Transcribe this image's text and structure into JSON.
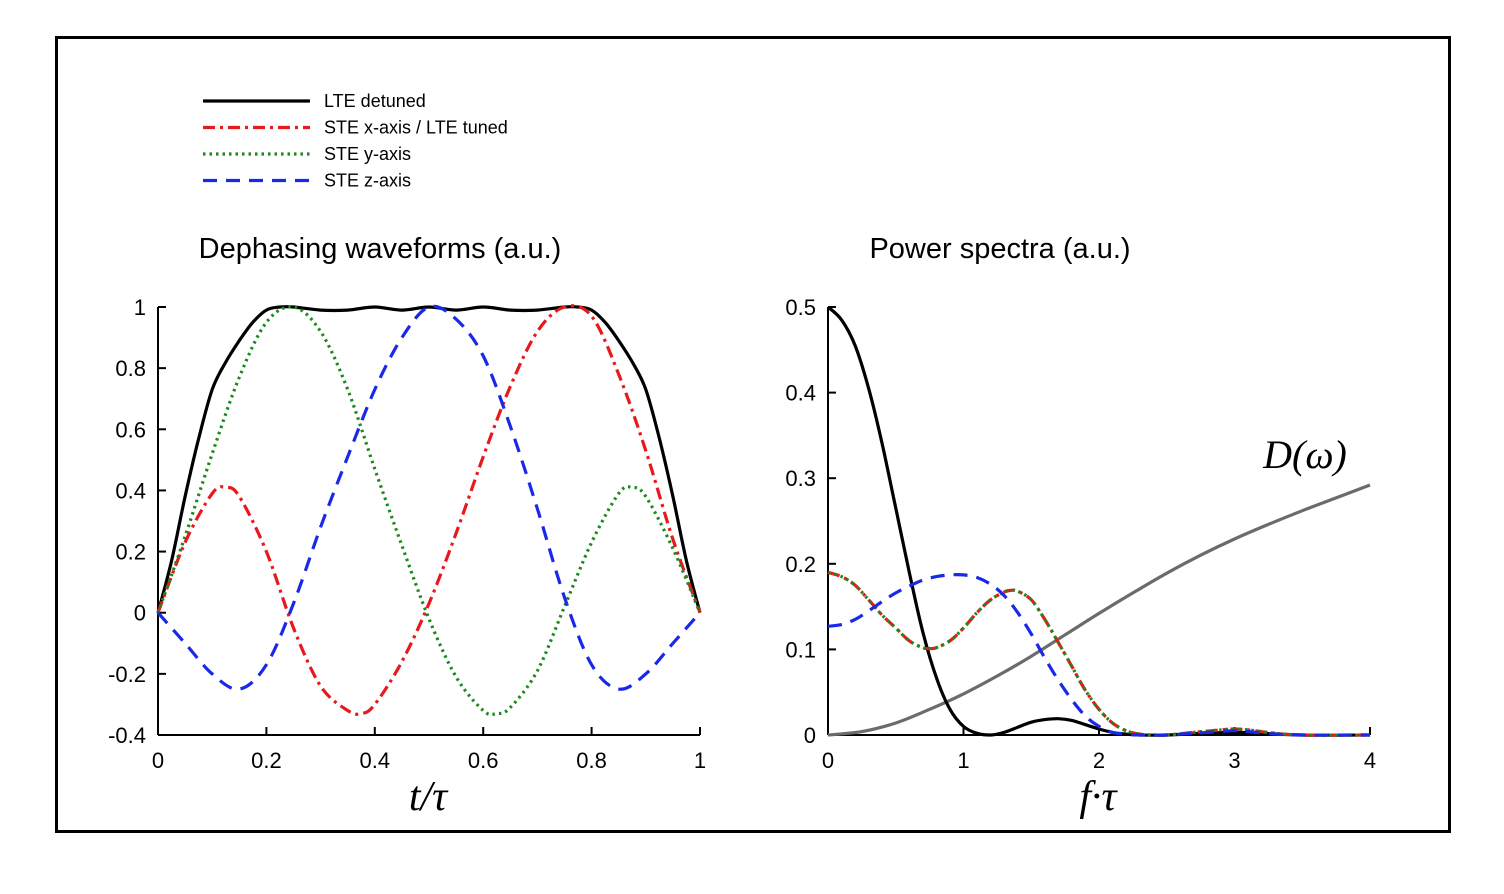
{
  "legend": [
    {
      "label": "LTE detuned",
      "color": "#000000",
      "dash": "solid"
    },
    {
      "label": "STE x-axis / LTE tuned",
      "color": "#e8191c",
      "dash": "dashdot"
    },
    {
      "label": "STE y-axis",
      "color": "#1a8a1a",
      "dash": "dotted"
    },
    {
      "label": "STE z-axis",
      "color": "#1a28e8",
      "dash": "dashed"
    }
  ],
  "chart_data": [
    {
      "type": "line",
      "title": "Dephasing waveforms (a.u.)",
      "xlabel": "t/τ",
      "ylabel": "",
      "xlim": [
        0,
        1
      ],
      "ylim": [
        -0.4,
        1
      ],
      "xticks": [
        "0",
        "0.2",
        "0.4",
        "0.6",
        "0.8",
        "1"
      ],
      "yticks": [
        "-0.4",
        "-0.2",
        "0",
        "0.2",
        "0.4",
        "0.6",
        "0.8",
        "1"
      ],
      "series": [
        {
          "name": "LTE detuned",
          "color": "#000000",
          "dash": "solid",
          "x": [
            0,
            0.025,
            0.05,
            0.075,
            0.1,
            0.125,
            0.15,
            0.175,
            0.2,
            0.225,
            0.25,
            0.3,
            0.35,
            0.4,
            0.45,
            0.5,
            0.55,
            0.6,
            0.65,
            0.7,
            0.75,
            0.775,
            0.8,
            0.825,
            0.85,
            0.875,
            0.9,
            0.925,
            0.95,
            0.975,
            1
          ],
          "y": [
            0,
            0.17,
            0.38,
            0.57,
            0.73,
            0.82,
            0.89,
            0.95,
            0.99,
            1.0,
            1.0,
            0.99,
            0.99,
            1.0,
            0.99,
            1.0,
            0.99,
            1.0,
            0.99,
            0.99,
            1.0,
            1.0,
            0.99,
            0.95,
            0.89,
            0.82,
            0.73,
            0.57,
            0.38,
            0.17,
            0
          ]
        },
        {
          "name": "STE x-axis / LTE tuned",
          "color": "#e8191c",
          "dash": "dashdot",
          "x": [
            0,
            0.05,
            0.1,
            0.125,
            0.15,
            0.2,
            0.25,
            0.3,
            0.35,
            0.375,
            0.4,
            0.45,
            0.5,
            0.55,
            0.6,
            0.65,
            0.7,
            0.75,
            0.8,
            0.85,
            0.9,
            0.95,
            1
          ],
          "y": [
            0,
            0.23,
            0.39,
            0.41,
            0.38,
            0.2,
            -0.05,
            -0.24,
            -0.32,
            -0.33,
            -0.3,
            -0.16,
            0.03,
            0.26,
            0.51,
            0.74,
            0.92,
            1.0,
            0.97,
            0.78,
            0.53,
            0.24,
            0
          ]
        },
        {
          "name": "STE y-axis",
          "color": "#1a8a1a",
          "dash": "dotted",
          "x": [
            0,
            0.05,
            0.1,
            0.15,
            0.2,
            0.25,
            0.3,
            0.35,
            0.4,
            0.45,
            0.5,
            0.55,
            0.6,
            0.625,
            0.65,
            0.7,
            0.75,
            0.8,
            0.85,
            0.875,
            0.9,
            0.95,
            1
          ],
          "y": [
            0,
            0.25,
            0.52,
            0.77,
            0.95,
            1.0,
            0.92,
            0.73,
            0.47,
            0.22,
            -0.02,
            -0.21,
            -0.32,
            -0.33,
            -0.31,
            -0.19,
            0.02,
            0.23,
            0.39,
            0.41,
            0.38,
            0.21,
            0
          ]
        },
        {
          "name": "STE z-axis",
          "color": "#1a28e8",
          "dash": "dashed",
          "x": [
            0,
            0.05,
            0.1,
            0.15,
            0.2,
            0.25,
            0.3,
            0.35,
            0.4,
            0.45,
            0.5,
            0.55,
            0.6,
            0.65,
            0.7,
            0.75,
            0.8,
            0.85,
            0.9,
            0.95,
            1
          ],
          "y": [
            0,
            -0.1,
            -0.2,
            -0.25,
            -0.17,
            0.03,
            0.28,
            0.51,
            0.73,
            0.9,
            1.0,
            0.96,
            0.84,
            0.61,
            0.34,
            0.05,
            -0.17,
            -0.25,
            -0.2,
            -0.1,
            0
          ]
        }
      ]
    },
    {
      "type": "line",
      "title": "Power spectra (a.u.)",
      "xlabel": "f·τ",
      "ylabel": "",
      "xlim": [
        0,
        4
      ],
      "ylim": [
        0,
        0.5
      ],
      "xticks": [
        "0",
        "1",
        "2",
        "3",
        "4"
      ],
      "yticks": [
        "0",
        "0.1",
        "0.2",
        "0.3",
        "0.4",
        "0.5"
      ],
      "annotation": "D(ω)",
      "series": [
        {
          "name": "LTE detuned",
          "color": "#000000",
          "dash": "solid",
          "x": [
            0,
            0.1,
            0.2,
            0.3,
            0.4,
            0.5,
            0.6,
            0.7,
            0.8,
            0.9,
            1.0,
            1.1,
            1.2,
            1.3,
            1.4,
            1.5,
            1.6,
            1.7,
            1.8,
            1.9,
            2.0,
            2.1,
            2.2,
            2.3,
            2.5,
            3.0,
            3.5,
            4.0
          ],
          "y": [
            0.5,
            0.485,
            0.455,
            0.405,
            0.34,
            0.265,
            0.19,
            0.12,
            0.067,
            0.03,
            0.01,
            0.002,
            0.0,
            0.003,
            0.009,
            0.015,
            0.018,
            0.019,
            0.017,
            0.012,
            0.007,
            0.003,
            0.001,
            0.0,
            0.0,
            0.003,
            0.0,
            0.0
          ]
        },
        {
          "name": "STE x-axis / LTE tuned",
          "color": "#e8191c",
          "dash": "dashdot",
          "x": [
            0,
            0.1,
            0.2,
            0.3,
            0.4,
            0.5,
            0.6,
            0.7,
            0.75,
            0.8,
            0.9,
            1.0,
            1.1,
            1.2,
            1.3,
            1.35,
            1.4,
            1.5,
            1.6,
            1.7,
            1.8,
            1.9,
            2.0,
            2.1,
            2.2,
            2.3,
            2.4,
            2.5,
            2.7,
            2.9,
            3.0,
            3.1,
            3.3,
            3.5,
            4.0
          ],
          "y": [
            0.19,
            0.185,
            0.175,
            0.158,
            0.14,
            0.125,
            0.11,
            0.102,
            0.101,
            0.102,
            0.11,
            0.125,
            0.143,
            0.158,
            0.167,
            0.169,
            0.168,
            0.158,
            0.135,
            0.108,
            0.08,
            0.052,
            0.03,
            0.014,
            0.005,
            0.001,
            0.0,
            0.0,
            0.003,
            0.006,
            0.007,
            0.006,
            0.002,
            0.0,
            0.0
          ]
        },
        {
          "name": "STE y-axis",
          "color": "#1a8a1a",
          "dash": "dotted",
          "x": [
            0,
            0.1,
            0.2,
            0.3,
            0.4,
            0.5,
            0.6,
            0.7,
            0.75,
            0.8,
            0.9,
            1.0,
            1.1,
            1.2,
            1.3,
            1.35,
            1.4,
            1.5,
            1.6,
            1.7,
            1.8,
            1.9,
            2.0,
            2.1,
            2.2,
            2.3,
            2.4,
            2.5,
            2.7,
            2.9,
            3.0,
            3.1,
            3.3,
            3.5,
            4.0
          ],
          "y": [
            0.19,
            0.185,
            0.175,
            0.158,
            0.14,
            0.125,
            0.11,
            0.102,
            0.101,
            0.102,
            0.11,
            0.125,
            0.143,
            0.158,
            0.167,
            0.169,
            0.168,
            0.158,
            0.135,
            0.108,
            0.08,
            0.052,
            0.03,
            0.014,
            0.005,
            0.001,
            0.0,
            0.0,
            0.003,
            0.006,
            0.007,
            0.006,
            0.002,
            0.0,
            0.0
          ]
        },
        {
          "name": "STE z-axis",
          "color": "#1a28e8",
          "dash": "dashed",
          "x": [
            0,
            0.1,
            0.2,
            0.3,
            0.4,
            0.5,
            0.6,
            0.7,
            0.8,
            0.9,
            1.0,
            1.1,
            1.2,
            1.3,
            1.4,
            1.5,
            1.6,
            1.7,
            1.8,
            1.9,
            2.0,
            2.1,
            2.2,
            2.3,
            2.4,
            2.5,
            2.7,
            2.9,
            3.0,
            3.1,
            3.3,
            3.5,
            4.0
          ],
          "y": [
            0.127,
            0.129,
            0.135,
            0.145,
            0.156,
            0.166,
            0.174,
            0.181,
            0.185,
            0.187,
            0.187,
            0.184,
            0.176,
            0.163,
            0.143,
            0.118,
            0.09,
            0.064,
            0.041,
            0.022,
            0.01,
            0.003,
            0.001,
            0.0,
            0.0,
            0.0,
            0.002,
            0.004,
            0.005,
            0.004,
            0.001,
            0.0,
            0.0
          ]
        },
        {
          "name": "D(ω)",
          "color": "#6b6b6b",
          "dash": "solid",
          "x": [
            0,
            0.25,
            0.5,
            0.75,
            1.0,
            1.25,
            1.5,
            1.75,
            2.0,
            2.25,
            2.5,
            2.75,
            3.0,
            3.25,
            3.5,
            3.75,
            4.0
          ],
          "y": [
            0.0,
            0.004,
            0.014,
            0.03,
            0.048,
            0.069,
            0.092,
            0.117,
            0.142,
            0.166,
            0.189,
            0.21,
            0.229,
            0.246,
            0.262,
            0.277,
            0.292
          ]
        }
      ]
    }
  ]
}
